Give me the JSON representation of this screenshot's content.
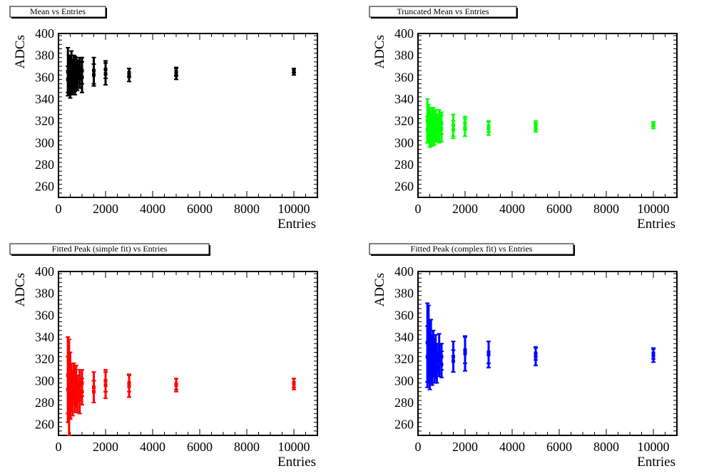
{
  "figure": {
    "background": "#ffffff"
  },
  "chart_data": [
    {
      "type": "scatter",
      "title": "Mean vs Entries",
      "xlabel": "Entries",
      "ylabel": "ADCs",
      "xlim": [
        0,
        11000
      ],
      "ylim": [
        250,
        400
      ],
      "xticks": [
        0,
        2000,
        4000,
        6000,
        8000,
        10000
      ],
      "yticks": [
        260,
        280,
        300,
        320,
        340,
        360,
        380,
        400
      ],
      "grid": false,
      "legend": "none",
      "color": "#000000",
      "series": [
        {
          "x": [
            400,
            400,
            450,
            450,
            500,
            500,
            550,
            550,
            600,
            600,
            650,
            650,
            700,
            700,
            750,
            750,
            800,
            800,
            900,
            900,
            1000,
            1000,
            1500,
            1500,
            2000,
            2000,
            3000,
            3000,
            5000,
            5000,
            10000,
            10000
          ],
          "y": [
            365,
            358,
            362,
            370,
            355,
            368,
            372,
            360,
            366,
            358,
            360,
            370,
            363,
            356,
            368,
            362,
            365,
            360,
            362,
            368,
            366,
            360,
            366,
            362,
            363,
            367,
            362,
            364,
            363,
            365,
            365,
            366
          ],
          "yerr": [
            22,
            12,
            18,
            10,
            14,
            12,
            12,
            16,
            10,
            14,
            14,
            10,
            16,
            12,
            10,
            14,
            10,
            12,
            12,
            10,
            12,
            14,
            12,
            10,
            10,
            8,
            6,
            4,
            5,
            4,
            3,
            2
          ]
        }
      ]
    },
    {
      "type": "scatter",
      "title": "Truncated Mean vs Entries",
      "xlabel": "Entries",
      "ylabel": "ADCs",
      "xlim": [
        0,
        11000
      ],
      "ylim": [
        250,
        400
      ],
      "xticks": [
        0,
        2000,
        4000,
        6000,
        8000,
        10000
      ],
      "yticks": [
        260,
        280,
        300,
        320,
        340,
        360,
        380,
        400
      ],
      "grid": false,
      "legend": "none",
      "color": "#00ff00",
      "series": [
        {
          "x": [
            400,
            400,
            450,
            450,
            500,
            500,
            550,
            550,
            600,
            600,
            650,
            650,
            700,
            700,
            750,
            750,
            800,
            800,
            900,
            900,
            1000,
            1000,
            1500,
            1500,
            2000,
            2000,
            3000,
            3000,
            5000,
            5000,
            10000,
            10000
          ],
          "y": [
            320,
            312,
            316,
            325,
            308,
            318,
            322,
            312,
            315,
            309,
            312,
            322,
            316,
            308,
            320,
            313,
            316,
            312,
            312,
            320,
            318,
            313,
            316,
            312,
            314,
            318,
            313,
            315,
            314,
            316,
            316,
            317
          ],
          "yerr": [
            20,
            12,
            16,
            10,
            12,
            10,
            10,
            14,
            10,
            12,
            12,
            10,
            14,
            10,
            10,
            12,
            10,
            10,
            12,
            10,
            10,
            12,
            10,
            8,
            8,
            6,
            6,
            5,
            4,
            4,
            3,
            2
          ]
        }
      ]
    },
    {
      "type": "scatter",
      "title": "Fitted Peak (simple fit) vs Entries",
      "xlabel": "Entries",
      "ylabel": "ADCs",
      "xlim": [
        0,
        11000
      ],
      "ylim": [
        250,
        400
      ],
      "xticks": [
        0,
        2000,
        4000,
        6000,
        8000,
        10000
      ],
      "yticks": [
        260,
        280,
        300,
        320,
        340,
        360,
        380,
        400
      ],
      "grid": false,
      "legend": "none",
      "color": "#ff0000",
      "series": [
        {
          "x": [
            400,
            400,
            450,
            450,
            500,
            500,
            550,
            550,
            600,
            600,
            650,
            650,
            700,
            700,
            750,
            750,
            800,
            800,
            900,
            900,
            1000,
            1000,
            1500,
            1500,
            2000,
            2000,
            3000,
            3000,
            5000,
            5000,
            10000,
            10000
          ],
          "y": [
            305,
            292,
            318,
            275,
            296,
            285,
            300,
            290,
            295,
            284,
            300,
            290,
            296,
            285,
            290,
            302,
            293,
            285,
            296,
            286,
            290,
            298,
            294,
            290,
            296,
            300,
            295,
            298,
            296,
            297,
            297,
            298
          ],
          "yerr": [
            35,
            30,
            20,
            25,
            30,
            20,
            16,
            18,
            14,
            16,
            16,
            12,
            16,
            14,
            14,
            12,
            12,
            14,
            14,
            16,
            12,
            12,
            14,
            10,
            12,
            10,
            10,
            8,
            6,
            5,
            5,
            4
          ]
        }
      ]
    },
    {
      "type": "scatter",
      "title": "Fitted Peak (complex fit) vs Entries",
      "xlabel": "Entries",
      "ylabel": "ADCs",
      "xlim": [
        0,
        11000
      ],
      "ylim": [
        250,
        400
      ],
      "xticks": [
        0,
        2000,
        4000,
        6000,
        8000,
        10000
      ],
      "yticks": [
        260,
        280,
        300,
        320,
        340,
        360,
        380,
        400
      ],
      "grid": false,
      "legend": "none",
      "color": "#0000ff",
      "series": [
        {
          "x": [
            400,
            400,
            450,
            450,
            500,
            500,
            550,
            550,
            600,
            600,
            650,
            650,
            700,
            700,
            750,
            750,
            800,
            800,
            900,
            900,
            1000,
            1000,
            1500,
            1500,
            2000,
            2000,
            3000,
            3000,
            5000,
            5000,
            10000,
            10000
          ],
          "y": [
            335,
            322,
            345,
            318,
            330,
            312,
            338,
            320,
            325,
            316,
            330,
            318,
            322,
            312,
            328,
            318,
            322,
            312,
            318,
            325,
            322,
            315,
            322,
            318,
            325,
            328,
            324,
            326,
            322,
            325,
            323,
            325
          ],
          "yerr": [
            36,
            28,
            24,
            20,
            26,
            20,
            18,
            22,
            16,
            20,
            16,
            14,
            16,
            14,
            14,
            16,
            12,
            14,
            14,
            18,
            12,
            12,
            14,
            10,
            16,
            12,
            12,
            10,
            8,
            6,
            6,
            5
          ]
        }
      ]
    }
  ]
}
